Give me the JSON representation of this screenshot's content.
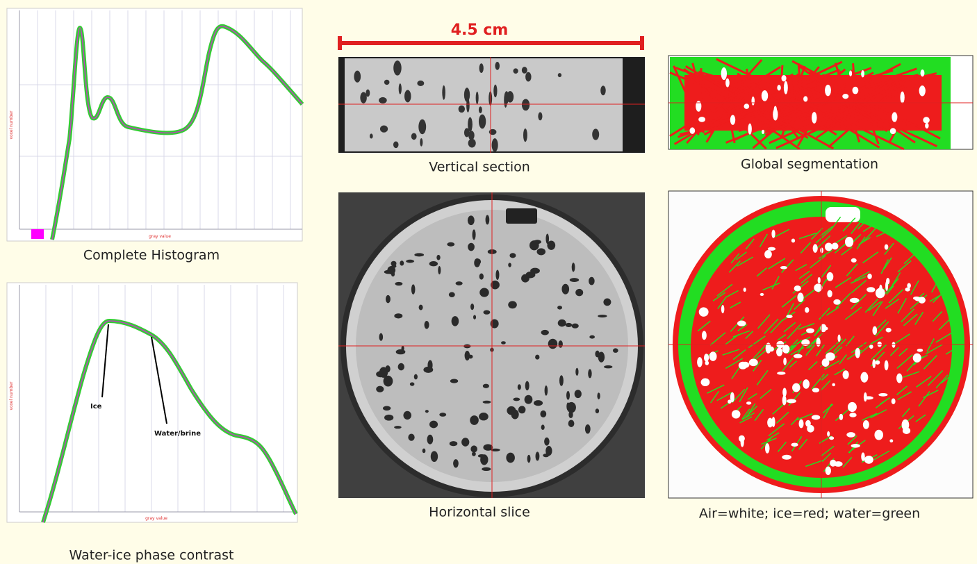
{
  "scale_bar": {
    "label": "4.5 cm"
  },
  "panels": {
    "complete_histogram": {
      "caption": "Complete Histogram",
      "x_label": "gray value",
      "y_label": "voxel number"
    },
    "phase_contrast": {
      "caption": "Water-ice phase contrast",
      "x_label": "gray value",
      "y_label": "voxel number",
      "annotations": [
        "Ice",
        "Water/brine"
      ]
    },
    "vertical_section": {
      "caption": "Vertical section"
    },
    "global_segmentation": {
      "caption": "Global segmentation"
    },
    "horizontal_slice": {
      "caption": "Horizontal slice"
    },
    "segmented_slice": {
      "caption": "Air=white; ice=red; water=green"
    }
  }
}
